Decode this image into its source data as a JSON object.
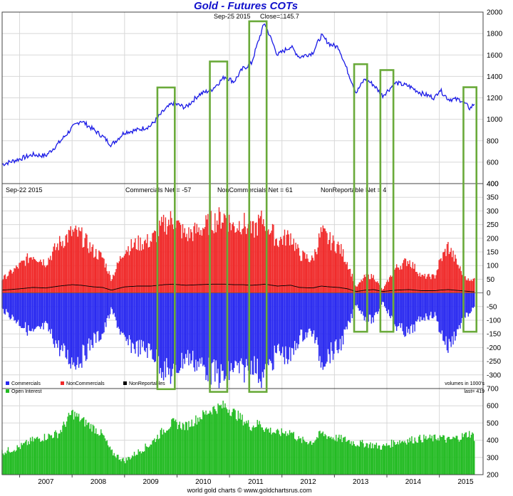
{
  "header": {
    "title": "Gold - Futures COTs",
    "price_date": "Sep-25 2015",
    "close_label": "Close=",
    "close_value": "1145.7"
  },
  "cot_header": {
    "date": "Sep-22 2015",
    "commercials": "Commercials Net = -57",
    "noncommercials": "NonCommercials Net = 61",
    "nonreportable": "NonReportable Net = 4"
  },
  "cot_legend": {
    "commercials": "Commercials",
    "noncommercials": "NonCommercials",
    "nonreportables": "NonReportables",
    "units": "volumes in 1000's"
  },
  "oi_legend": {
    "label": "Open Interest",
    "last": "last= 419"
  },
  "footer": {
    "source": "world gold charts © www.goldchartsrus.com"
  },
  "colors": {
    "price_line": "#1a1ae6",
    "commercials": "#2a2af0",
    "noncommercials": "#f02a2a",
    "nonreportables": "#000000",
    "open_interest": "#22bb22",
    "highlight_box": "#6aaa3a"
  },
  "chart_data": [
    {
      "type": "line",
      "title": "Gold - Futures COTs",
      "x": [
        "2006-09",
        "2007-01",
        "2007-04",
        "2007-07",
        "2007-10",
        "2008-01",
        "2008-03",
        "2008-06",
        "2008-08",
        "2008-10",
        "2009-01",
        "2009-04",
        "2009-07",
        "2009-10",
        "2009-12",
        "2010-03",
        "2010-06",
        "2010-09",
        "2010-12",
        "2011-02",
        "2011-04",
        "2011-06",
        "2011-08",
        "2011-09",
        "2011-12",
        "2012-03",
        "2012-05",
        "2012-08",
        "2012-10",
        "2012-12",
        "2013-02",
        "2013-04",
        "2013-06",
        "2013-08",
        "2013-10",
        "2013-12",
        "2014-03",
        "2014-06",
        "2014-09",
        "2014-12",
        "2015-01",
        "2015-03",
        "2015-06",
        "2015-08",
        "2015-09"
      ],
      "series": [
        {
          "values": [
            580,
            630,
            670,
            660,
            780,
            920,
            990,
            900,
            840,
            760,
            880,
            900,
            940,
            1080,
            1150,
            1110,
            1230,
            1280,
            1400,
            1350,
            1470,
            1520,
            1780,
            1900,
            1600,
            1680,
            1580,
            1620,
            1780,
            1700,
            1670,
            1450,
            1250,
            1380,
            1320,
            1220,
            1340,
            1310,
            1240,
            1200,
            1280,
            1190,
            1180,
            1100,
            1146
          ]
        }
      ],
      "ylim": [
        400,
        2000
      ],
      "yticks": [
        400,
        600,
        800,
        1000,
        1200,
        1400,
        1600,
        1800,
        2000
      ]
    },
    {
      "type": "bar",
      "x": [
        "2006-09",
        "2007-01",
        "2007-04",
        "2007-07",
        "2007-10",
        "2008-01",
        "2008-03",
        "2008-06",
        "2008-08",
        "2008-10",
        "2009-01",
        "2009-04",
        "2009-07",
        "2009-10",
        "2009-12",
        "2010-03",
        "2010-06",
        "2010-09",
        "2010-12",
        "2011-02",
        "2011-04",
        "2011-06",
        "2011-08",
        "2011-09",
        "2011-12",
        "2012-03",
        "2012-05",
        "2012-08",
        "2012-10",
        "2012-12",
        "2013-02",
        "2013-04",
        "2013-06",
        "2013-08",
        "2013-10",
        "2013-12",
        "2014-03",
        "2014-06",
        "2014-09",
        "2014-12",
        "2015-01",
        "2015-03",
        "2015-06",
        "2015-08",
        "2015-09"
      ],
      "series": [
        {
          "name": "Commercials",
          "values": [
            -60,
            -110,
            -150,
            -120,
            -200,
            -250,
            -240,
            -170,
            -150,
            -60,
            -180,
            -200,
            -210,
            -280,
            -300,
            -230,
            -260,
            -290,
            -310,
            -270,
            -290,
            -250,
            -300,
            -310,
            -210,
            -240,
            -160,
            -140,
            -250,
            -220,
            -200,
            -130,
            -40,
            -90,
            -100,
            -30,
            -120,
            -150,
            -90,
            -80,
            -130,
            -200,
            -110,
            -70,
            -57
          ]
        },
        {
          "name": "NonCommercials",
          "values": [
            50,
            100,
            140,
            110,
            180,
            220,
            210,
            150,
            130,
            50,
            160,
            180,
            190,
            250,
            270,
            210,
            230,
            260,
            280,
            240,
            260,
            220,
            260,
            270,
            190,
            210,
            140,
            120,
            220,
            190,
            170,
            110,
            20,
            60,
            60,
            10,
            90,
            120,
            60,
            60,
            110,
            170,
            80,
            40,
            61
          ]
        },
        {
          "name": "NonReportables",
          "values": [
            10,
            15,
            20,
            18,
            25,
            30,
            28,
            22,
            20,
            10,
            22,
            25,
            25,
            30,
            32,
            28,
            30,
            32,
            32,
            30,
            30,
            28,
            30,
            32,
            25,
            28,
            20,
            18,
            25,
            22,
            20,
            15,
            5,
            10,
            12,
            5,
            10,
            12,
            8,
            8,
            10,
            12,
            8,
            5,
            4
          ]
        }
      ],
      "ylim": [
        -350,
        400
      ],
      "yticks": [
        -300,
        -250,
        -200,
        -150,
        -100,
        -50,
        0,
        50,
        100,
        150,
        200,
        250,
        300,
        350,
        400
      ]
    },
    {
      "type": "bar",
      "x": [
        "2006-09",
        "2007-01",
        "2007-04",
        "2007-07",
        "2007-10",
        "2008-01",
        "2008-03",
        "2008-06",
        "2008-08",
        "2008-10",
        "2009-01",
        "2009-04",
        "2009-07",
        "2009-10",
        "2009-12",
        "2010-03",
        "2010-06",
        "2010-09",
        "2010-12",
        "2011-02",
        "2011-04",
        "2011-06",
        "2011-08",
        "2011-09",
        "2011-12",
        "2012-03",
        "2012-05",
        "2012-08",
        "2012-10",
        "2012-12",
        "2013-02",
        "2013-04",
        "2013-06",
        "2013-08",
        "2013-10",
        "2013-12",
        "2014-03",
        "2014-06",
        "2014-09",
        "2014-12",
        "2015-01",
        "2015-03",
        "2015-06",
        "2015-08",
        "2015-09"
      ],
      "series": [
        {
          "name": "Open Interest",
          "values": [
            330,
            360,
            400,
            420,
            440,
            560,
            520,
            470,
            430,
            330,
            280,
            330,
            380,
            460,
            500,
            480,
            530,
            580,
            600,
            560,
            520,
            480,
            500,
            470,
            440,
            450,
            400,
            390,
            440,
            420,
            410,
            400,
            380,
            380,
            370,
            360,
            390,
            400,
            410,
            410,
            420,
            400,
            420,
            440,
            419
          ]
        }
      ],
      "ylim": [
        200,
        700
      ],
      "yticks": [
        200,
        300,
        400,
        500,
        600,
        700
      ]
    }
  ],
  "highlights": [
    {
      "from": "2009-09",
      "to": "2009-12"
    },
    {
      "from": "2010-09",
      "to": "2010-12"
    },
    {
      "from": "2011-06",
      "to": "2011-09"
    },
    {
      "from": "2013-06",
      "to": "2013-08"
    },
    {
      "from": "2013-12",
      "to": "2014-02"
    },
    {
      "from": "2015-07",
      "to": "2015-09"
    }
  ],
  "year_labels": [
    "2007",
    "2008",
    "2009",
    "2010",
    "2011",
    "2012",
    "2013",
    "2014",
    "2015"
  ]
}
